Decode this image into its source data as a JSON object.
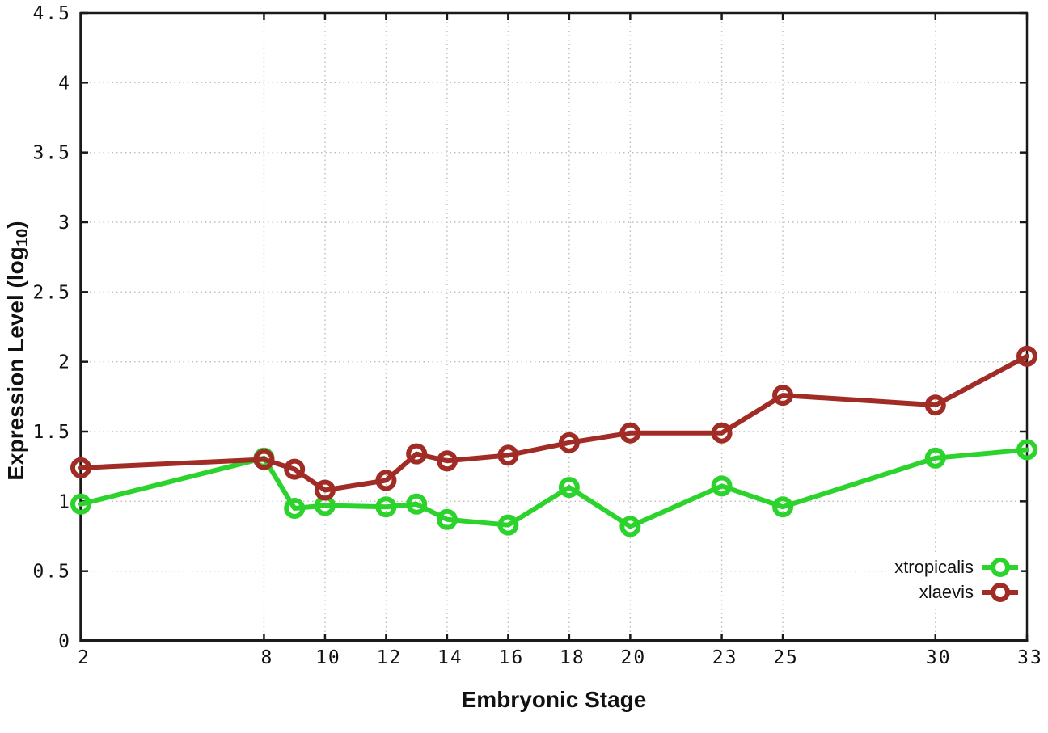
{
  "chart_data": {
    "type": "line",
    "title": "",
    "xlabel": "Embryonic Stage",
    "ylabel": "Expression Level (log10)",
    "ylabel_parts": {
      "pre": "Expression Level (log",
      "sub": "10",
      "post": ")"
    },
    "x": [
      2,
      8,
      9,
      10,
      12,
      13,
      14,
      16,
      18,
      20,
      23,
      25,
      30,
      33
    ],
    "x_ticks": [
      2,
      8,
      10,
      12,
      14,
      16,
      18,
      20,
      23,
      25,
      30,
      33
    ],
    "y_ticks": [
      0,
      0.5,
      1,
      1.5,
      2,
      2.5,
      3,
      3.5,
      4,
      4.5
    ],
    "xlim": [
      2,
      33
    ],
    "ylim": [
      0,
      4.5
    ],
    "grid": true,
    "legend_position": "bottom-right",
    "series": [
      {
        "name": "xtropicalis",
        "color": "#2CD32C",
        "values": [
          0.98,
          1.31,
          0.95,
          0.97,
          0.96,
          0.98,
          0.87,
          0.83,
          1.1,
          0.82,
          1.11,
          0.96,
          1.31,
          1.37
        ]
      },
      {
        "name": "xlaevis",
        "color": "#A12B25",
        "values": [
          1.24,
          1.3,
          1.23,
          1.08,
          1.15,
          1.34,
          1.29,
          1.33,
          1.42,
          1.49,
          1.49,
          1.76,
          1.69,
          2.04
        ]
      }
    ],
    "frame_color": "#1a1a1a",
    "grid_color": "#bdbdbd"
  }
}
